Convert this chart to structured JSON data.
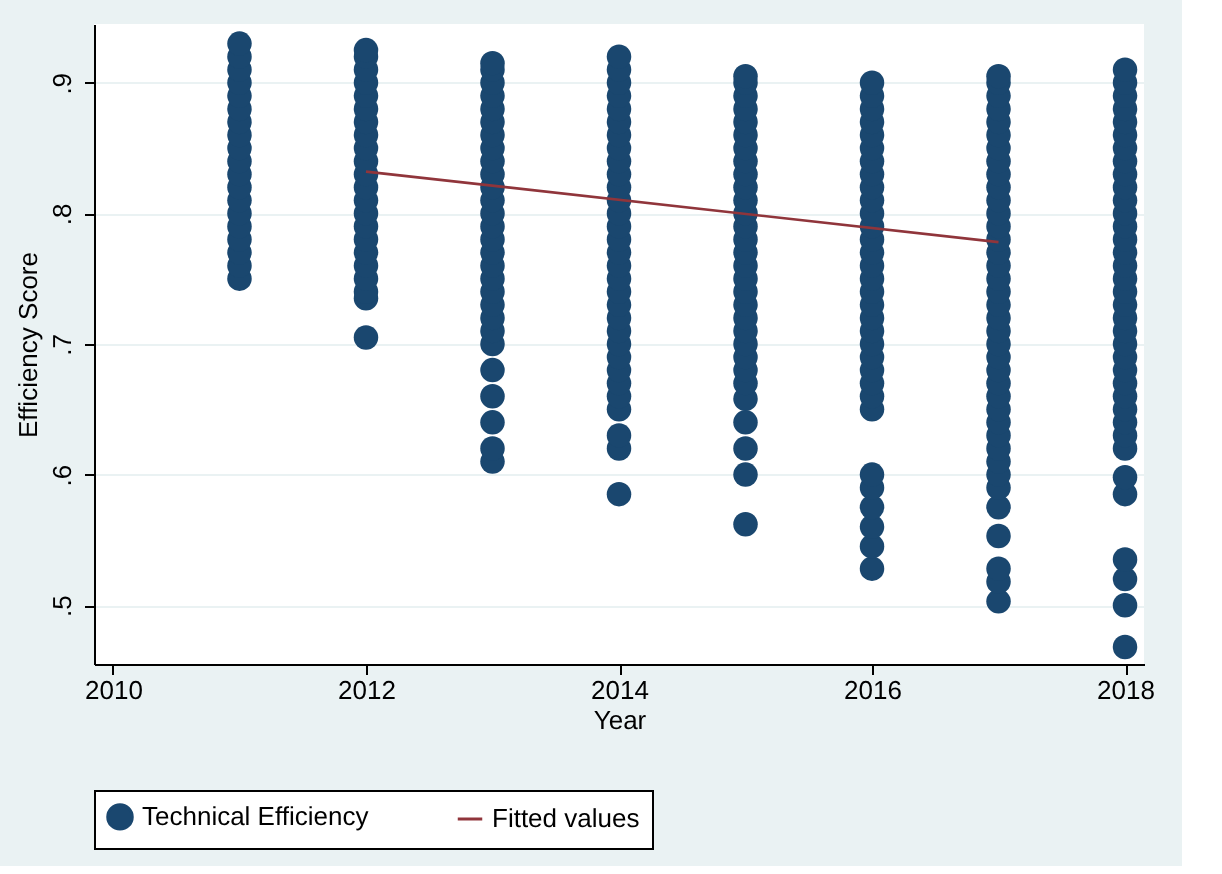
{
  "chart_data": {
    "type": "scatter",
    "xlabel": "Year",
    "ylabel": "Efficiency Score",
    "xlim": [
      2009.85,
      2018.15
    ],
    "xticks": [
      2010,
      2012,
      2014,
      2016,
      2018
    ],
    "ylim": [
      0.455,
      0.945
    ],
    "yticks": [
      {
        "value": 0.5,
        "label": ".5"
      },
      {
        "value": 0.6,
        "label": ".6"
      },
      {
        "value": 0.7,
        "label": ".7"
      },
      {
        "value": 0.8,
        "label": ".8"
      },
      {
        "value": 0.9,
        "label": ".9"
      }
    ],
    "grid": "y",
    "legend": "bottom",
    "series": [
      {
        "name": "Technical Efficiency",
        "color": "#1a476f",
        "marker": "circle",
        "x": [
          2011,
          2011,
          2011,
          2011,
          2011,
          2011,
          2011,
          2011,
          2011,
          2011,
          2011,
          2011,
          2011,
          2011,
          2011,
          2011,
          2011,
          2011,
          2011,
          2012,
          2012,
          2012,
          2012,
          2012,
          2012,
          2012,
          2012,
          2012,
          2012,
          2012,
          2012,
          2012,
          2012,
          2012,
          2012,
          2012,
          2012,
          2012,
          2012,
          2012,
          2012,
          2013,
          2013,
          2013,
          2013,
          2013,
          2013,
          2013,
          2013,
          2013,
          2013,
          2013,
          2013,
          2013,
          2013,
          2013,
          2013,
          2013,
          2013,
          2013,
          2013,
          2013,
          2013,
          2013,
          2013,
          2013,
          2013,
          2013,
          2013,
          2014,
          2014,
          2014,
          2014,
          2014,
          2014,
          2014,
          2014,
          2014,
          2014,
          2014,
          2014,
          2014,
          2014,
          2014,
          2014,
          2014,
          2014,
          2014,
          2014,
          2014,
          2014,
          2014,
          2014,
          2014,
          2014,
          2014,
          2014,
          2014,
          2014,
          2014,
          2015,
          2015,
          2015,
          2015,
          2015,
          2015,
          2015,
          2015,
          2015,
          2015,
          2015,
          2015,
          2015,
          2015,
          2015,
          2015,
          2015,
          2015,
          2015,
          2015,
          2015,
          2015,
          2015,
          2015,
          2015,
          2015,
          2015,
          2015,
          2015,
          2015,
          2016,
          2016,
          2016,
          2016,
          2016,
          2016,
          2016,
          2016,
          2016,
          2016,
          2016,
          2016,
          2016,
          2016,
          2016,
          2016,
          2016,
          2016,
          2016,
          2016,
          2016,
          2016,
          2016,
          2016,
          2016,
          2016,
          2016,
          2016,
          2016,
          2016,
          2016,
          2016,
          2017,
          2017,
          2017,
          2017,
          2017,
          2017,
          2017,
          2017,
          2017,
          2017,
          2017,
          2017,
          2017,
          2017,
          2017,
          2017,
          2017,
          2017,
          2017,
          2017,
          2017,
          2017,
          2017,
          2017,
          2017,
          2017,
          2017,
          2017,
          2017,
          2017,
          2017,
          2017,
          2017,
          2017,
          2017,
          2017,
          2017,
          2017,
          2018,
          2018,
          2018,
          2018,
          2018,
          2018,
          2018,
          2018,
          2018,
          2018,
          2018,
          2018,
          2018,
          2018,
          2018,
          2018,
          2018,
          2018,
          2018,
          2018,
          2018,
          2018,
          2018,
          2018,
          2018,
          2018,
          2018,
          2018,
          2018,
          2018,
          2018,
          2018,
          2018,
          2018,
          2018,
          2018
        ],
        "values": [
          0.75,
          0.76,
          0.77,
          0.78,
          0.79,
          0.8,
          0.81,
          0.82,
          0.83,
          0.84,
          0.85,
          0.86,
          0.87,
          0.88,
          0.89,
          0.9,
          0.91,
          0.92,
          0.93,
          0.705,
          0.735,
          0.74,
          0.75,
          0.76,
          0.77,
          0.78,
          0.79,
          0.8,
          0.81,
          0.82,
          0.83,
          0.84,
          0.85,
          0.86,
          0.87,
          0.88,
          0.89,
          0.9,
          0.91,
          0.92,
          0.925,
          0.61,
          0.62,
          0.64,
          0.66,
          0.68,
          0.7,
          0.71,
          0.72,
          0.73,
          0.74,
          0.75,
          0.76,
          0.77,
          0.78,
          0.79,
          0.8,
          0.81,
          0.82,
          0.83,
          0.84,
          0.85,
          0.86,
          0.87,
          0.88,
          0.89,
          0.9,
          0.91,
          0.915,
          0.585,
          0.62,
          0.63,
          0.65,
          0.66,
          0.67,
          0.68,
          0.69,
          0.7,
          0.71,
          0.72,
          0.73,
          0.74,
          0.75,
          0.76,
          0.77,
          0.78,
          0.79,
          0.8,
          0.81,
          0.82,
          0.83,
          0.84,
          0.85,
          0.86,
          0.87,
          0.88,
          0.89,
          0.9,
          0.91,
          0.92,
          0.562,
          0.6,
          0.62,
          0.64,
          0.658,
          0.67,
          0.68,
          0.69,
          0.7,
          0.71,
          0.72,
          0.73,
          0.74,
          0.75,
          0.76,
          0.77,
          0.78,
          0.79,
          0.8,
          0.81,
          0.82,
          0.83,
          0.84,
          0.85,
          0.86,
          0.87,
          0.88,
          0.89,
          0.9,
          0.905,
          0.528,
          0.545,
          0.56,
          0.575,
          0.59,
          0.6,
          0.65,
          0.66,
          0.67,
          0.68,
          0.69,
          0.7,
          0.71,
          0.72,
          0.73,
          0.74,
          0.75,
          0.76,
          0.77,
          0.78,
          0.79,
          0.8,
          0.81,
          0.82,
          0.83,
          0.84,
          0.85,
          0.86,
          0.87,
          0.88,
          0.89,
          0.9,
          0.503,
          0.518,
          0.528,
          0.553,
          0.575,
          0.59,
          0.6,
          0.61,
          0.62,
          0.63,
          0.64,
          0.65,
          0.66,
          0.67,
          0.68,
          0.69,
          0.7,
          0.71,
          0.72,
          0.73,
          0.74,
          0.75,
          0.76,
          0.77,
          0.78,
          0.79,
          0.8,
          0.81,
          0.82,
          0.83,
          0.84,
          0.85,
          0.86,
          0.87,
          0.88,
          0.89,
          0.9,
          0.905,
          0.468,
          0.5,
          0.52,
          0.535,
          0.585,
          0.598,
          0.62,
          0.63,
          0.64,
          0.65,
          0.66,
          0.67,
          0.68,
          0.69,
          0.7,
          0.71,
          0.72,
          0.73,
          0.74,
          0.75,
          0.76,
          0.77,
          0.78,
          0.79,
          0.8,
          0.81,
          0.82,
          0.83,
          0.84,
          0.85,
          0.86,
          0.87,
          0.88,
          0.89,
          0.9,
          0.91
        ]
      },
      {
        "name": "Fitted values",
        "type": "line",
        "marker": "none",
        "color": "#90353b",
        "x": [
          2012,
          2017
        ],
        "values": [
          0.832,
          0.778
        ]
      }
    ]
  }
}
